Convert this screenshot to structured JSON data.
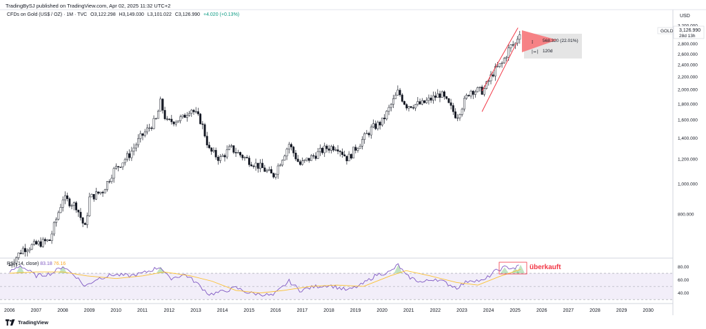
{
  "header": {
    "publisher": "TradingBySJ published on TradingView.com, Apr 02, 2025 11:32 UTC+2",
    "symbol": "CFDs on Gold (US$ / OZ) · 1M · TVC",
    "open": "O3,122.298",
    "high": "H3,149.030",
    "low": "L3,101.022",
    "close": "C3,126.990",
    "change": "+4.020 (+0.13%)"
  },
  "price_axis": {
    "currency": "USD",
    "badge_ticker": "GOLD",
    "badge_price": "3,126.990",
    "badge_time": "28d 13h"
  },
  "measure_tool": {
    "change": "568.320 (22.01%)",
    "bars": "120d"
  },
  "rsi": {
    "label": "RSI (14, close)",
    "value_rsi": "83.18",
    "value_ma": "76.16"
  },
  "annotation": {
    "text": "überkauft"
  },
  "footer": {
    "brand": "TradingView"
  },
  "colors": {
    "up": "#131722",
    "down": "#131722",
    "channel": "#f23645",
    "triangle": "#f77c80",
    "rsi_line": "#7e57c2",
    "rsi_ma": "#fbc02d",
    "rsi_band": "#ede7f6"
  },
  "chart_data": [
    {
      "type": "candlestick",
      "title": "CFDs on Gold (US$ / OZ)",
      "timeframe": "1M",
      "x_tick_labels": [
        "2006",
        "2007",
        "2008",
        "2009",
        "2010",
        "2011",
        "2012",
        "2013",
        "2014",
        "2015",
        "2016",
        "2017",
        "2018",
        "2019",
        "2020",
        "2021",
        "2022",
        "2023",
        "2024",
        "2025",
        "2026",
        "2027",
        "2028",
        "2029",
        "2030",
        "203"
      ],
      "y_tick_labels": [
        "800.000",
        "1,000.000",
        "1,200.000",
        "1,400.000",
        "1,600.000",
        "1,800.000",
        "2,000.000",
        "2,200.000",
        "2,400.000",
        "2,600.000",
        "2,800.000",
        "3,000.000",
        "3,200.000"
      ],
      "ylim": [
        600,
        3220
      ],
      "log_scale": true,
      "approx_monthly_close": [
        [
          2006.0,
          550
        ],
        [
          2006.5,
          620
        ],
        [
          2007.0,
          640
        ],
        [
          2007.5,
          660
        ],
        [
          2008.0,
          900
        ],
        [
          2008.5,
          850
        ],
        [
          2008.83,
          720
        ],
        [
          2009.0,
          900
        ],
        [
          2009.5,
          950
        ],
        [
          2009.9,
          1100
        ],
        [
          2010.5,
          1240
        ],
        [
          2010.9,
          1400
        ],
        [
          2011.5,
          1600
        ],
        [
          2011.67,
          1820
        ],
        [
          2011.9,
          1570
        ],
        [
          2012.5,
          1620
        ],
        [
          2012.8,
          1750
        ],
        [
          2013.2,
          1580
        ],
        [
          2013.5,
          1280
        ],
        [
          2013.9,
          1200
        ],
        [
          2014.3,
          1300
        ],
        [
          2014.9,
          1200
        ],
        [
          2015.5,
          1120
        ],
        [
          2015.9,
          1060
        ],
        [
          2016.5,
          1340
        ],
        [
          2016.9,
          1150
        ],
        [
          2017.5,
          1240
        ],
        [
          2017.9,
          1300
        ],
        [
          2018.3,
          1320
        ],
        [
          2018.7,
          1200
        ],
        [
          2019.0,
          1300
        ],
        [
          2019.6,
          1500
        ],
        [
          2020.0,
          1580
        ],
        [
          2020.6,
          1970
        ],
        [
          2020.9,
          1780
        ],
        [
          2021.5,
          1800
        ],
        [
          2022.2,
          1940
        ],
        [
          2022.8,
          1640
        ],
        [
          2023.3,
          1990
        ],
        [
          2023.8,
          1980
        ],
        [
          2024.2,
          2290
        ],
        [
          2024.5,
          2420
        ],
        [
          2024.8,
          2740
        ],
        [
          2025.0,
          2800
        ],
        [
          2025.2,
          3127
        ]
      ],
      "channel": [
        [
          2023.75,
          1700,
          2025.05,
          2820
        ],
        [
          2023.75,
          1980,
          2025.1,
          3150
        ]
      ],
      "measure": {
        "change": "568.320 (22.01%)",
        "bars": "120d"
      }
    },
    {
      "type": "line",
      "title": "RSI (14, close)",
      "y_tick_labels": [
        "40.00",
        "60.00",
        "80.00"
      ],
      "ylim": [
        25,
        92
      ],
      "bands": [
        30,
        50,
        70
      ],
      "series": [
        {
          "name": "RSI",
          "x": [
            2006.0,
            2006.4,
            2007.0,
            2007.6,
            2008.0,
            2008.5,
            2008.83,
            2009.3,
            2009.9,
            2010.5,
            2011.0,
            2011.67,
            2012.0,
            2012.6,
            2013.0,
            2013.5,
            2014.0,
            2014.5,
            2015.0,
            2015.5,
            2015.9,
            2016.5,
            2016.9,
            2017.5,
            2018.0,
            2018.7,
            2019.2,
            2019.8,
            2020.3,
            2020.6,
            2020.9,
            2021.5,
            2022.0,
            2022.8,
            2023.3,
            2023.8,
            2024.2,
            2024.6,
            2025.0,
            2025.2
          ],
          "values": [
            72,
            82,
            66,
            70,
            81,
            65,
            50,
            62,
            68,
            66,
            70,
            80,
            62,
            68,
            56,
            38,
            42,
            48,
            40,
            38,
            36,
            58,
            44,
            50,
            52,
            44,
            52,
            68,
            72,
            83,
            66,
            56,
            62,
            48,
            60,
            58,
            72,
            79,
            78,
            83
          ]
        },
        {
          "name": "RSI-based MA",
          "x": [
            2006.0,
            2007.0,
            2008.0,
            2008.9,
            2010.0,
            2011.0,
            2011.8,
            2012.8,
            2013.6,
            2014.5,
            2015.4,
            2016.3,
            2017.3,
            2018.3,
            2019.3,
            2020.3,
            2020.9,
            2021.8,
            2022.8,
            2023.6,
            2024.4,
            2025.2
          ],
          "values": [
            70,
            72,
            72,
            66,
            62,
            66,
            72,
            66,
            58,
            44,
            40,
            44,
            50,
            52,
            50,
            66,
            74,
            66,
            56,
            52,
            65,
            76
          ]
        }
      ]
    }
  ]
}
